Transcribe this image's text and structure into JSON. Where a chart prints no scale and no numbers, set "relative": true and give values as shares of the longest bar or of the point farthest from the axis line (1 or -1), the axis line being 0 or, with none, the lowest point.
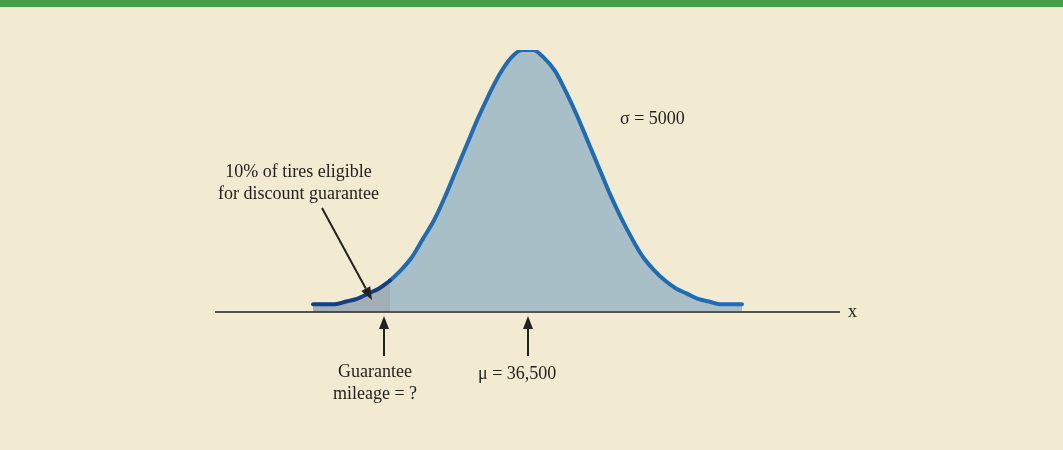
{
  "chart_data": {
    "type": "area",
    "relative": true,
    "annotations": [
      "x",
      "σ = 5000",
      "10% of tires eligible\nfor discount guarantee",
      "Guarantee\nmileage = ?",
      "μ = 36,500"
    ],
    "categories": [
      null,
      null,
      null,
      null,
      null,
      null,
      null,
      null,
      null,
      null,
      null,
      null,
      null,
      null,
      null,
      null,
      null,
      null,
      null,
      null,
      null,
      null,
      null,
      null,
      null,
      null,
      null,
      null,
      null,
      null,
      null,
      null,
      null,
      null,
      null,
      null,
      null,
      null,
      null,
      null
    ],
    "series": [
      {
        "color": "#123f85",
        "values": [
          0.03,
          0.03,
          0.03,
          0.04,
          0.05,
          0.07,
          0.09,
          0.12,
          null,
          null,
          null,
          null,
          null,
          null,
          null,
          null,
          null,
          null,
          null,
          null,
          null,
          null,
          null,
          null,
          null,
          null,
          null,
          null,
          null,
          null,
          null,
          null,
          null,
          null,
          null,
          null,
          null,
          null,
          null,
          null
        ]
      },
      {
        "color": "#1f6cb5",
        "values": [
          null,
          null,
          null,
          null,
          null,
          null,
          null,
          0.12,
          0.16,
          0.21,
          0.28,
          0.35,
          0.44,
          0.54,
          0.64,
          0.74,
          0.83,
          0.91,
          0.97,
          1,
          1,
          0.97,
          0.92,
          0.84,
          0.75,
          0.65,
          0.55,
          0.45,
          0.36,
          0.28,
          0.21,
          0.16,
          0.12,
          0.09,
          0.07,
          0.05,
          0.04,
          0.03,
          0.03,
          0.03
        ]
      }
    ]
  }
}
